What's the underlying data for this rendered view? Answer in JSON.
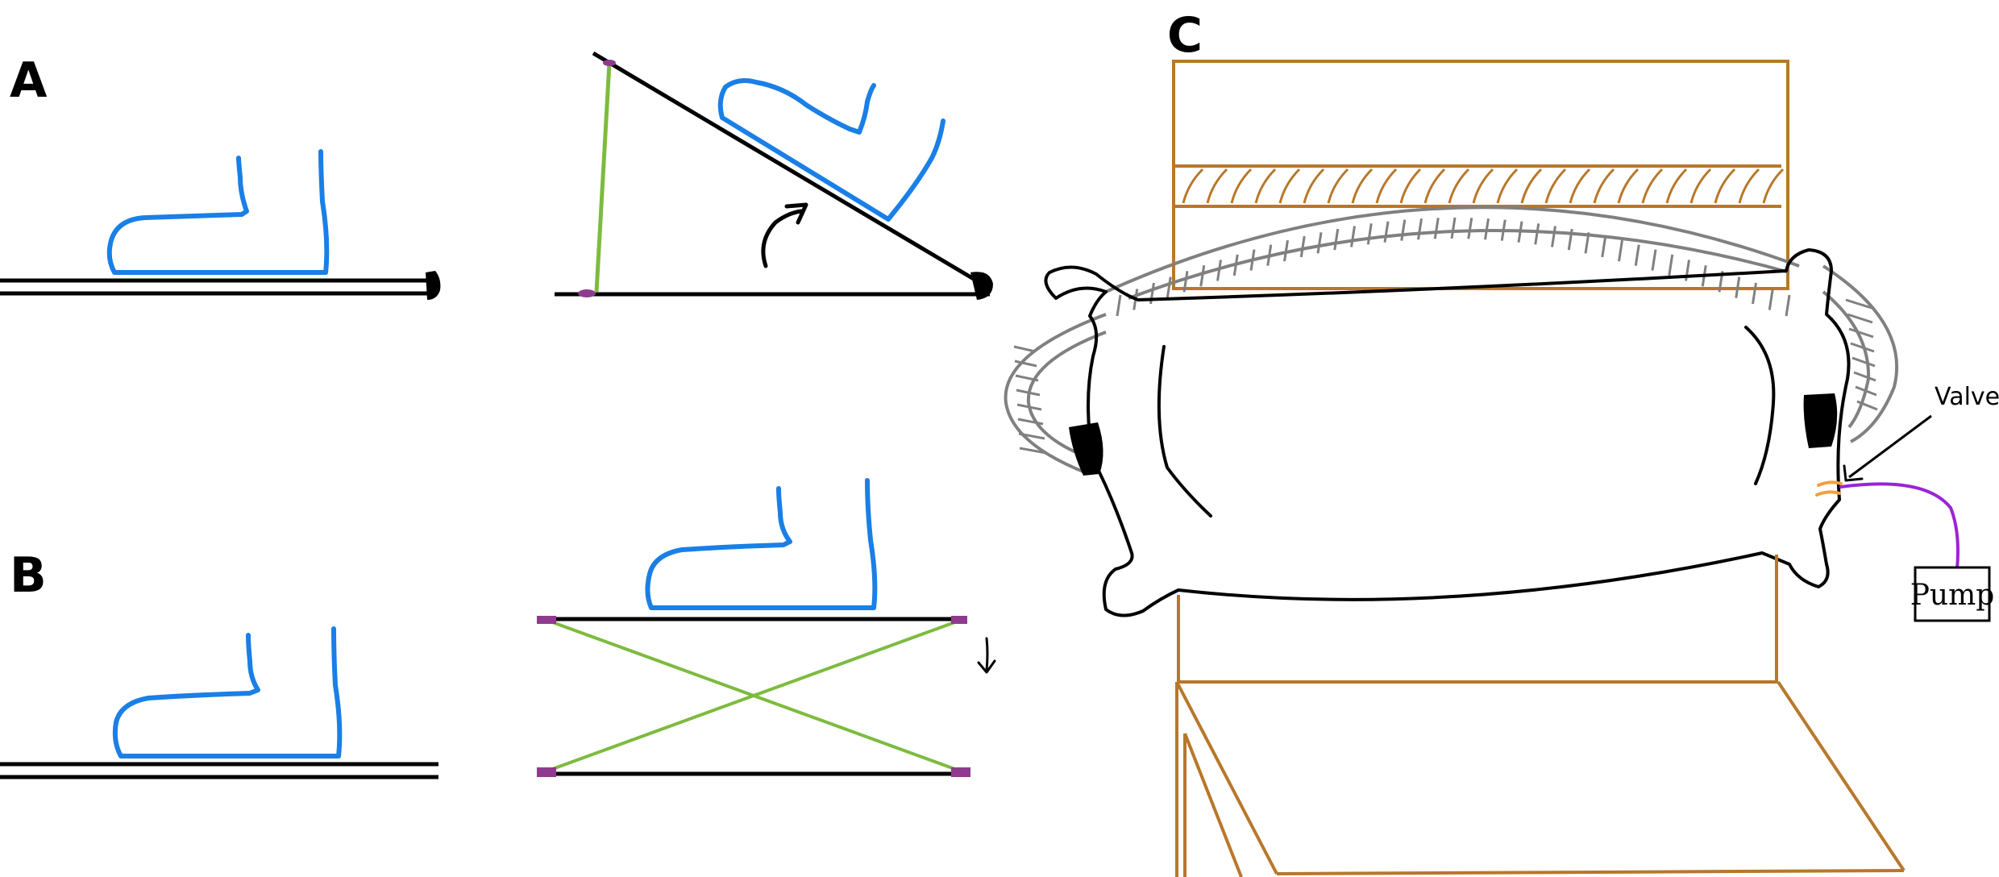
{
  "panels": {
    "a": {
      "label": "A"
    },
    "b": {
      "label": "B"
    },
    "c": {
      "label": "C"
    }
  },
  "annotations": {
    "valve_label": "Valve",
    "pump_label": "Pump"
  },
  "colors": {
    "foot": "#1a7fe6",
    "strut": "#7dbb3f",
    "pivot": "#8e3b8e",
    "wood": "#b8772a",
    "tube": "#808080",
    "valve": "#f0a040",
    "hose": "#9b24d6",
    "ink": "#000000"
  }
}
